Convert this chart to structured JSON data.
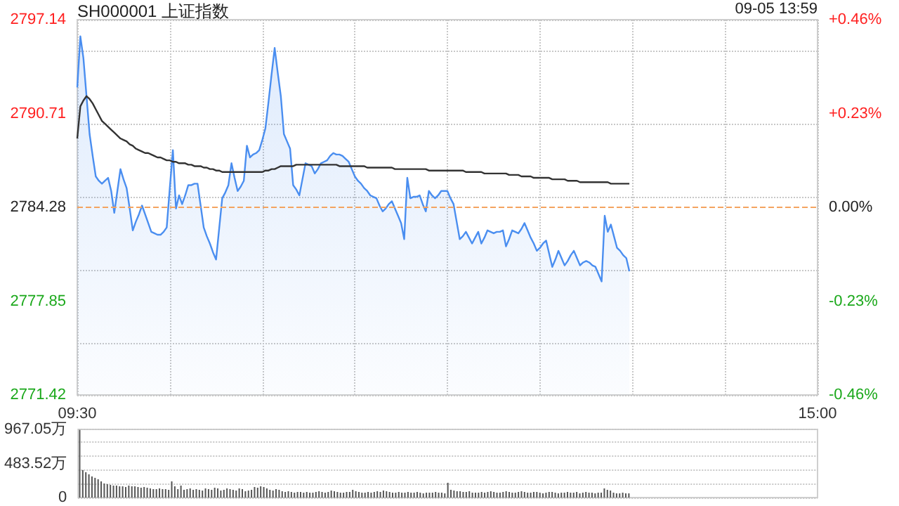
{
  "chart_data": [
    {
      "type": "line",
      "title": "SH000001 上证指数",
      "annotations": [
        "09-05 13:59"
      ],
      "categories": [
        "09:30",
        null,
        null,
        null,
        null,
        null,
        null,
        null,
        null,
        null,
        null,
        null,
        null,
        null,
        null,
        null,
        null,
        null,
        null,
        null,
        null,
        null,
        null,
        null,
        null,
        null,
        null,
        null,
        null,
        null,
        null,
        null,
        null,
        null,
        null,
        null,
        null,
        null,
        null,
        null,
        null,
        null,
        null,
        null,
        null,
        null,
        null,
        null,
        null,
        null,
        null,
        null,
        null,
        null,
        null,
        null,
        null,
        null,
        null,
        null,
        null,
        null,
        null,
        null,
        null,
        null,
        null,
        null,
        null,
        null,
        null,
        null,
        null,
        null,
        null,
        null,
        null,
        null,
        null,
        null,
        null,
        null,
        null,
        null,
        null,
        null,
        null,
        null,
        null,
        null,
        null,
        null,
        null,
        null,
        null,
        null,
        null,
        null,
        null,
        null,
        null,
        null,
        null,
        null,
        null,
        null,
        null,
        null,
        null,
        null,
        null,
        null,
        null,
        null,
        null,
        null,
        null,
        null,
        null,
        null,
        null,
        null,
        null,
        null,
        null,
        null,
        null,
        null,
        null,
        null,
        null,
        null,
        null,
        null,
        null,
        null,
        null,
        null,
        null,
        null,
        null,
        null,
        null,
        null,
        null,
        null,
        null,
        null,
        null,
        null,
        null,
        null,
        null,
        null,
        null,
        null,
        null,
        null,
        null,
        null,
        null,
        null,
        null,
        null,
        null,
        null,
        null,
        null,
        null,
        null,
        null,
        null,
        null,
        null,
        null,
        null,
        null,
        null,
        null,
        null,
        null,
        null,
        null,
        null,
        null,
        null,
        null,
        null,
        null,
        null,
        null,
        null,
        null,
        null,
        null,
        null,
        null,
        null,
        null,
        null,
        null,
        null,
        null,
        null,
        null,
        null,
        null,
        null,
        null,
        null,
        null,
        null,
        null,
        null,
        null,
        null,
        null,
        null,
        null,
        null,
        null,
        null,
        null,
        null,
        null,
        null,
        null,
        null,
        null,
        null,
        null,
        null,
        null,
        null,
        null,
        null,
        null,
        null,
        null,
        null,
        "15:00"
      ],
      "ylim": [
        2771.42,
        2797.14
      ],
      "yticks": [
        2771.42,
        2777.85,
        2784.28,
        2790.71,
        2797.14
      ],
      "y2lim": [
        -0.46,
        0.46
      ],
      "y2ticks": [
        {
          "value": -0.46,
          "label": "-0.46%"
        },
        {
          "value": -0.23,
          "label": "-0.23%"
        },
        {
          "value": 0,
          "label": "0.00%"
        },
        {
          "value": 0.23,
          "label": "+0.23%"
        },
        {
          "value": 0.46,
          "label": "+0.46%"
        }
      ],
      "grid": true,
      "marker": "none",
      "ref_lines": [
        {
          "axis": "y",
          "value": 2784.28,
          "color": "#f4a460",
          "line_style": "dashed"
        }
      ],
      "series": [
        {
          "type": "area",
          "color": "#4a8ef0",
          "values": [
            2792.5,
            2796.0,
            2794.5,
            2791.9,
            2789.3,
            2787.8,
            2786.4,
            2786.1,
            2785.9,
            2786.1,
            2786.3,
            2785.4,
            2783.9,
            2785.4,
            2786.9,
            2786.2,
            2785.6,
            2784.2,
            2782.7,
            2783.3,
            2783.8,
            2784.4,
            2783.8,
            2783.2,
            2782.6,
            2782.5,
            2782.4,
            2782.4,
            2782.6,
            2782.9,
            2785.6,
            2788.2,
            2784.2,
            2785.1,
            2784.5,
            2785.1,
            2785.8,
            2785.8,
            2785.9,
            2785.9,
            2784.4,
            2782.9,
            2782.3,
            2781.8,
            2781.2,
            2780.7,
            2782.8,
            2784.9,
            2785.3,
            2785.8,
            2787.3,
            2786.3,
            2785.4,
            2785.7,
            2786.1,
            2788.5,
            2787.7,
            2787.9,
            2788.0,
            2788.2,
            2788.9,
            2789.7,
            2791.5,
            2793.4,
            2795.2,
            2793.5,
            2791.9,
            2789.3,
            2788.8,
            2788.3,
            2785.8,
            2785.5,
            2785.1,
            2786.2,
            2787.3,
            2787.2,
            2787.1,
            2786.6,
            2786.9,
            2787.3,
            2787.4,
            2787.5,
            2787.8,
            2788.0,
            2787.9,
            2787.9,
            2787.8,
            2787.6,
            2787.4,
            2786.9,
            2786.4,
            2786.1,
            2785.9,
            2785.6,
            2785.4,
            2785.1,
            2785.0,
            2784.9,
            2784.4,
            2784.0,
            2784.2,
            2784.5,
            2784.7,
            2784.2,
            2783.7,
            2783.2,
            2782.1,
            2786.3,
            2784.9,
            2785.0,
            2785.0,
            2785.1,
            2784.5,
            2784.0,
            2785.4,
            2785.1,
            2784.9,
            2785.1,
            2785.4,
            2785.4,
            2785.4,
            2784.9,
            2784.5,
            2783.3,
            2782.1,
            2782.3,
            2782.6,
            2782.2,
            2781.8,
            2782.2,
            2782.6,
            2781.8,
            2782.2,
            2782.7,
            2782.6,
            2782.5,
            2782.6,
            2782.6,
            2782.7,
            2781.6,
            2782.1,
            2782.7,
            2782.6,
            2782.5,
            2782.8,
            2783.2,
            2782.7,
            2782.2,
            2781.8,
            2781.3,
            2781.5,
            2781.8,
            2782.0,
            2781.1,
            2780.2,
            2780.7,
            2781.3,
            2780.8,
            2780.3,
            2780.6,
            2781.0,
            2781.3,
            2780.8,
            2780.3,
            2780.5,
            2780.6,
            2780.5,
            2780.3,
            2780.2,
            2779.7,
            2779.2,
            2783.7,
            2782.6,
            2783.1,
            2782.3,
            2781.5,
            2781.3,
            2781.0,
            2780.8,
            2779.9,
            null,
            null,
            null,
            null,
            null,
            null,
            null,
            null,
            null,
            null,
            null,
            null,
            null,
            null,
            null,
            null,
            null,
            null,
            null,
            null,
            null,
            null,
            null,
            null,
            null,
            null,
            null,
            null,
            null,
            null,
            null,
            null,
            null,
            null,
            null,
            null,
            null,
            null,
            null,
            null,
            null,
            null,
            null,
            null,
            null,
            null,
            null,
            null,
            null,
            null,
            null,
            null,
            null,
            null,
            null,
            null,
            null,
            null,
            null,
            null,
            null
          ]
        },
        {
          "type": "line",
          "color": "#333333",
          "values": [
            2789.0,
            2791.2,
            2791.6,
            2791.9,
            2791.7,
            2791.4,
            2791.0,
            2790.6,
            2790.2,
            2790.0,
            2789.8,
            2789.6,
            2789.4,
            2789.2,
            2789.0,
            2788.9,
            2788.8,
            2788.6,
            2788.5,
            2788.3,
            2788.2,
            2788.1,
            2788.0,
            2788.0,
            2787.9,
            2787.8,
            2787.7,
            2787.7,
            2787.6,
            2787.5,
            2787.5,
            2787.4,
            2787.4,
            2787.3,
            2787.3,
            2787.3,
            2787.2,
            2787.2,
            2787.1,
            2787.1,
            2787.1,
            2787.0,
            2787.0,
            2786.9,
            2786.9,
            2786.8,
            2786.8,
            2786.7,
            2786.7,
            2786.7,
            2786.7,
            2786.7,
            2786.7,
            2786.7,
            2786.7,
            2786.7,
            2786.7,
            2786.7,
            2786.7,
            2786.7,
            2786.7,
            2786.8,
            2786.8,
            2786.9,
            2786.9,
            2787.0,
            2787.1,
            2787.1,
            2787.1,
            2787.1,
            2787.1,
            2787.2,
            2787.2,
            2787.2,
            2787.2,
            2787.2,
            2787.2,
            2787.2,
            2787.2,
            2787.2,
            2787.2,
            2787.2,
            2787.2,
            2787.2,
            2787.2,
            2787.1,
            2787.1,
            2787.1,
            2787.1,
            2787.1,
            2787.1,
            2787.1,
            2787.1,
            2787.1,
            2787.0,
            2787.0,
            2787.0,
            2787.0,
            2787.0,
            2787.0,
            2787.0,
            2787.0,
            2787.0,
            2786.9,
            2786.9,
            2786.9,
            2786.9,
            2786.9,
            2786.9,
            2786.9,
            2786.9,
            2786.9,
            2786.9,
            2786.9,
            2786.8,
            2786.8,
            2786.8,
            2786.8,
            2786.8,
            2786.8,
            2786.8,
            2786.8,
            2786.8,
            2786.8,
            2786.8,
            2786.8,
            2786.7,
            2786.7,
            2786.7,
            2786.7,
            2786.7,
            2786.7,
            2786.6,
            2786.6,
            2786.6,
            2786.6,
            2786.6,
            2786.6,
            2786.6,
            2786.6,
            2786.5,
            2786.5,
            2786.5,
            2786.5,
            2786.4,
            2786.4,
            2786.4,
            2786.4,
            2786.3,
            2786.3,
            2786.3,
            2786.3,
            2786.3,
            2786.3,
            2786.2,
            2786.2,
            2786.2,
            2786.2,
            2786.2,
            2786.1,
            2786.1,
            2786.1,
            2786.1,
            2786.0,
            2786.0,
            2786.0,
            2786.0,
            2786.0,
            2786.0,
            2786.0,
            2786.0,
            2786.0,
            2786.0,
            2785.9,
            2785.9,
            2785.9,
            2785.9,
            2785.9,
            2785.9,
            2785.9,
            null,
            null,
            null,
            null,
            null,
            null,
            null,
            null,
            null,
            null,
            null,
            null,
            null,
            null,
            null,
            null,
            null,
            null,
            null,
            null,
            null,
            null,
            null,
            null,
            null,
            null,
            null,
            null,
            null,
            null,
            null,
            null,
            null,
            null,
            null,
            null,
            null,
            null,
            null,
            null,
            null,
            null,
            null,
            null,
            null,
            null,
            null,
            null,
            null,
            null,
            null,
            null,
            null,
            null,
            null,
            null,
            null,
            null,
            null,
            null,
            null
          ]
        }
      ]
    },
    {
      "type": "bar",
      "categories": [
        null,
        null,
        null,
        null,
        null,
        null,
        null,
        null,
        null,
        null,
        null,
        null,
        null,
        null,
        null,
        null,
        null,
        null,
        null,
        null,
        null,
        null,
        null,
        null,
        null,
        null,
        null,
        null,
        null,
        null,
        null,
        null,
        null,
        null,
        null,
        null,
        null,
        null,
        null,
        null,
        null,
        null,
        null,
        null,
        null,
        null,
        null,
        null,
        null,
        null,
        null,
        null,
        null,
        null,
        null,
        null,
        null,
        null,
        null,
        null,
        null,
        null,
        null,
        null,
        null,
        null,
        null,
        null,
        null,
        null,
        null,
        null,
        null,
        null,
        null,
        null,
        null,
        null,
        null,
        null,
        null,
        null,
        null,
        null,
        null,
        null,
        null,
        null,
        null,
        null,
        null,
        null,
        null,
        null,
        null,
        null,
        null,
        null,
        null,
        null,
        null,
        null,
        null,
        null,
        null,
        null,
        null,
        null,
        null,
        null,
        null,
        null,
        null,
        null,
        null,
        null,
        null,
        null,
        null,
        null,
        null,
        null,
        null,
        null,
        null,
        null,
        null,
        null,
        null,
        null,
        null,
        null,
        null,
        null,
        null,
        null,
        null,
        null,
        null,
        null,
        null,
        null,
        null,
        null,
        null,
        null,
        null,
        null,
        null,
        null,
        null,
        null,
        null,
        null,
        null,
        null,
        null,
        null,
        null,
        null,
        null,
        null,
        null,
        null,
        null,
        null,
        null,
        null,
        null,
        null,
        null,
        null,
        null,
        null,
        null,
        null,
        null,
        null,
        null,
        null,
        null,
        null,
        null,
        null,
        null,
        null,
        null,
        null,
        null,
        null,
        null,
        null,
        null,
        null,
        null,
        null,
        null,
        null,
        null,
        null,
        null,
        null,
        null,
        null,
        null,
        null,
        null,
        null,
        null,
        null,
        null,
        null,
        null,
        null,
        null,
        null,
        null,
        null,
        null,
        null,
        null,
        null,
        null,
        null,
        null,
        null,
        null,
        null,
        null,
        null,
        null,
        null,
        null,
        null,
        null,
        null,
        null,
        null,
        null,
        null,
        null
      ],
      "ylim": [
        0,
        967.05
      ],
      "yticks": [
        0,
        {
          "value": 483.52,
          "label": "483.52万"
        },
        {
          "value": 967.05,
          "label": "967.05万"
        }
      ],
      "grid": "y",
      "tick_labels": "y",
      "color": "#555555",
      "values": [
        960,
        390,
        360,
        330,
        300,
        280,
        260,
        230,
        200,
        190,
        180,
        170,
        170,
        160,
        160,
        150,
        170,
        160,
        160,
        150,
        140,
        150,
        140,
        130,
        120,
        120,
        130,
        120,
        120,
        110,
        230,
        160,
        120,
        170,
        110,
        120,
        130,
        110,
        120,
        110,
        100,
        130,
        120,
        110,
        140,
        130,
        100,
        110,
        130,
        120,
        110,
        100,
        130,
        120,
        90,
        100,
        110,
        150,
        140,
        160,
        150,
        130,
        110,
        100,
        120,
        110,
        90,
        80,
        90,
        80,
        70,
        80,
        80,
        70,
        80,
        70,
        70,
        80,
        90,
        80,
        70,
        80,
        100,
        90,
        80,
        70,
        70,
        80,
        80,
        110,
        90,
        80,
        70,
        70,
        80,
        70,
        80,
        90,
        80,
        100,
        90,
        80,
        70,
        70,
        80,
        70,
        70,
        80,
        70,
        70,
        80,
        70,
        60,
        70,
        70,
        70,
        80,
        70,
        70,
        60,
        210,
        110,
        100,
        90,
        90,
        80,
        80,
        90,
        70,
        70,
        70,
        80,
        70,
        80,
        90,
        80,
        70,
        70,
        80,
        90,
        80,
        70,
        70,
        80,
        90,
        80,
        70,
        70,
        80,
        80,
        70,
        60,
        70,
        80,
        80,
        70,
        60,
        70,
        70,
        80,
        70,
        70,
        80,
        60,
        70,
        80,
        70,
        70,
        60,
        70,
        70,
        130,
        110,
        100,
        70,
        60,
        60,
        70,
        60,
        60,
        null,
        null,
        null,
        null,
        null,
        null,
        null,
        null,
        null,
        null,
        null,
        null,
        null,
        null,
        null,
        null,
        null,
        null,
        null,
        null,
        null,
        null,
        null,
        null,
        null,
        null,
        null,
        null,
        null,
        null,
        null,
        null,
        null,
        null,
        null,
        null,
        null,
        null,
        null,
        null,
        null,
        null,
        null,
        null,
        null,
        null,
        null,
        null,
        null,
        null,
        null,
        null,
        null,
        null,
        null,
        null,
        null,
        null,
        null,
        null,
        null
      ]
    }
  ]
}
